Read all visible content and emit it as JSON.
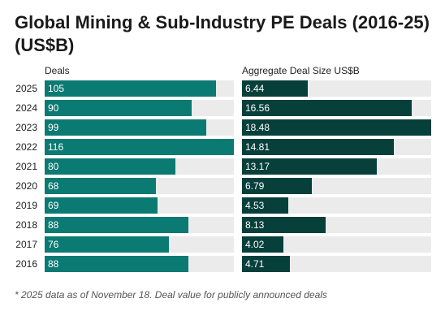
{
  "title": "Global Mining & Sub-Industry PE Deals (2016-25) (US$B)",
  "note": "* 2025 data as of November 18. Deal value for publicly announced deals",
  "colors": {
    "deals_bar": "#0b7a72",
    "size_bar": "#073f3b",
    "track": "#ebebeb"
  },
  "chart_data": [
    {
      "type": "bar",
      "orientation": "horizontal",
      "title": "Deals",
      "categories": [
        "2025",
        "2024",
        "2023",
        "2022",
        "2021",
        "2020",
        "2019",
        "2018",
        "2017",
        "2016"
      ],
      "values": [
        105,
        90,
        99,
        116,
        80,
        68,
        69,
        88,
        76,
        88
      ],
      "xlim": [
        0,
        116
      ]
    },
    {
      "type": "bar",
      "orientation": "horizontal",
      "title": "Aggregate Deal Size US$B",
      "categories": [
        "2025",
        "2024",
        "2023",
        "2022",
        "2021",
        "2020",
        "2019",
        "2018",
        "2017",
        "2016"
      ],
      "values": [
        6.44,
        16.56,
        18.48,
        14.81,
        13.17,
        6.79,
        4.53,
        8.13,
        4.02,
        4.71
      ],
      "xlim": [
        0,
        18.48
      ]
    }
  ]
}
